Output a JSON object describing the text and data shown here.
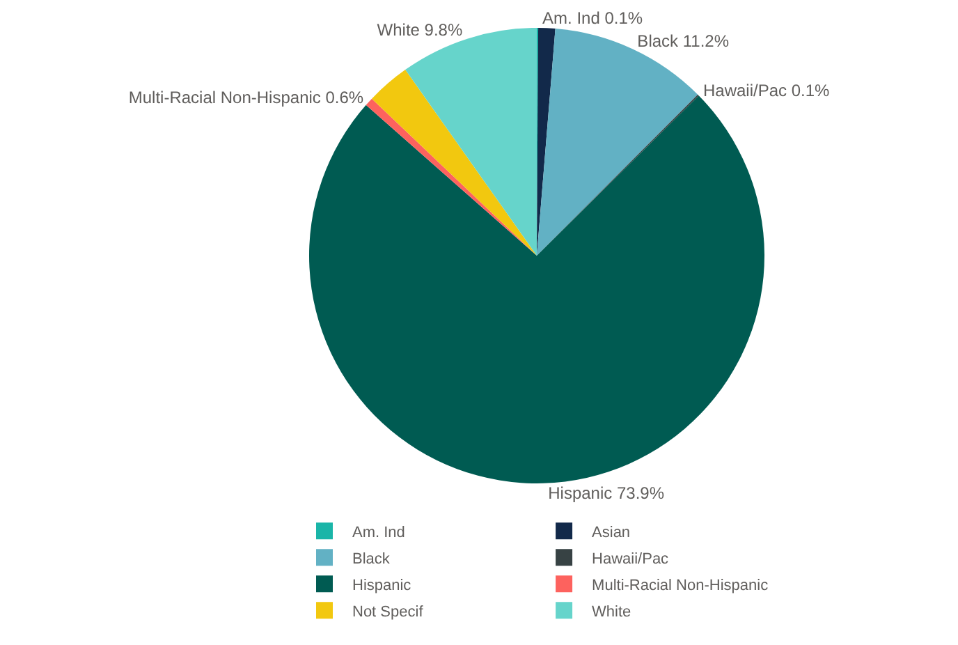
{
  "chart_data": {
    "type": "pie",
    "categories": [
      "Am. Ind",
      "Asian",
      "Black",
      "Hawaii/Pac",
      "Hispanic",
      "Multi-Racial Non-Hispanic",
      "Not Specif",
      "White"
    ],
    "values": [
      0.1,
      1.2,
      11.2,
      0.1,
      73.9,
      0.6,
      3.1,
      9.8
    ],
    "colors": [
      "#1ab5a8",
      "#12294a",
      "#62b1c4",
      "#374244",
      "#005b52",
      "#fd625e",
      "#f2c80f",
      "#66d4cb"
    ],
    "value_labels": [
      "0.1%",
      null,
      "11.2%",
      "0.1%",
      "73.9%",
      "0.6%",
      null,
      "9.8%"
    ],
    "legend": "bottom"
  }
}
